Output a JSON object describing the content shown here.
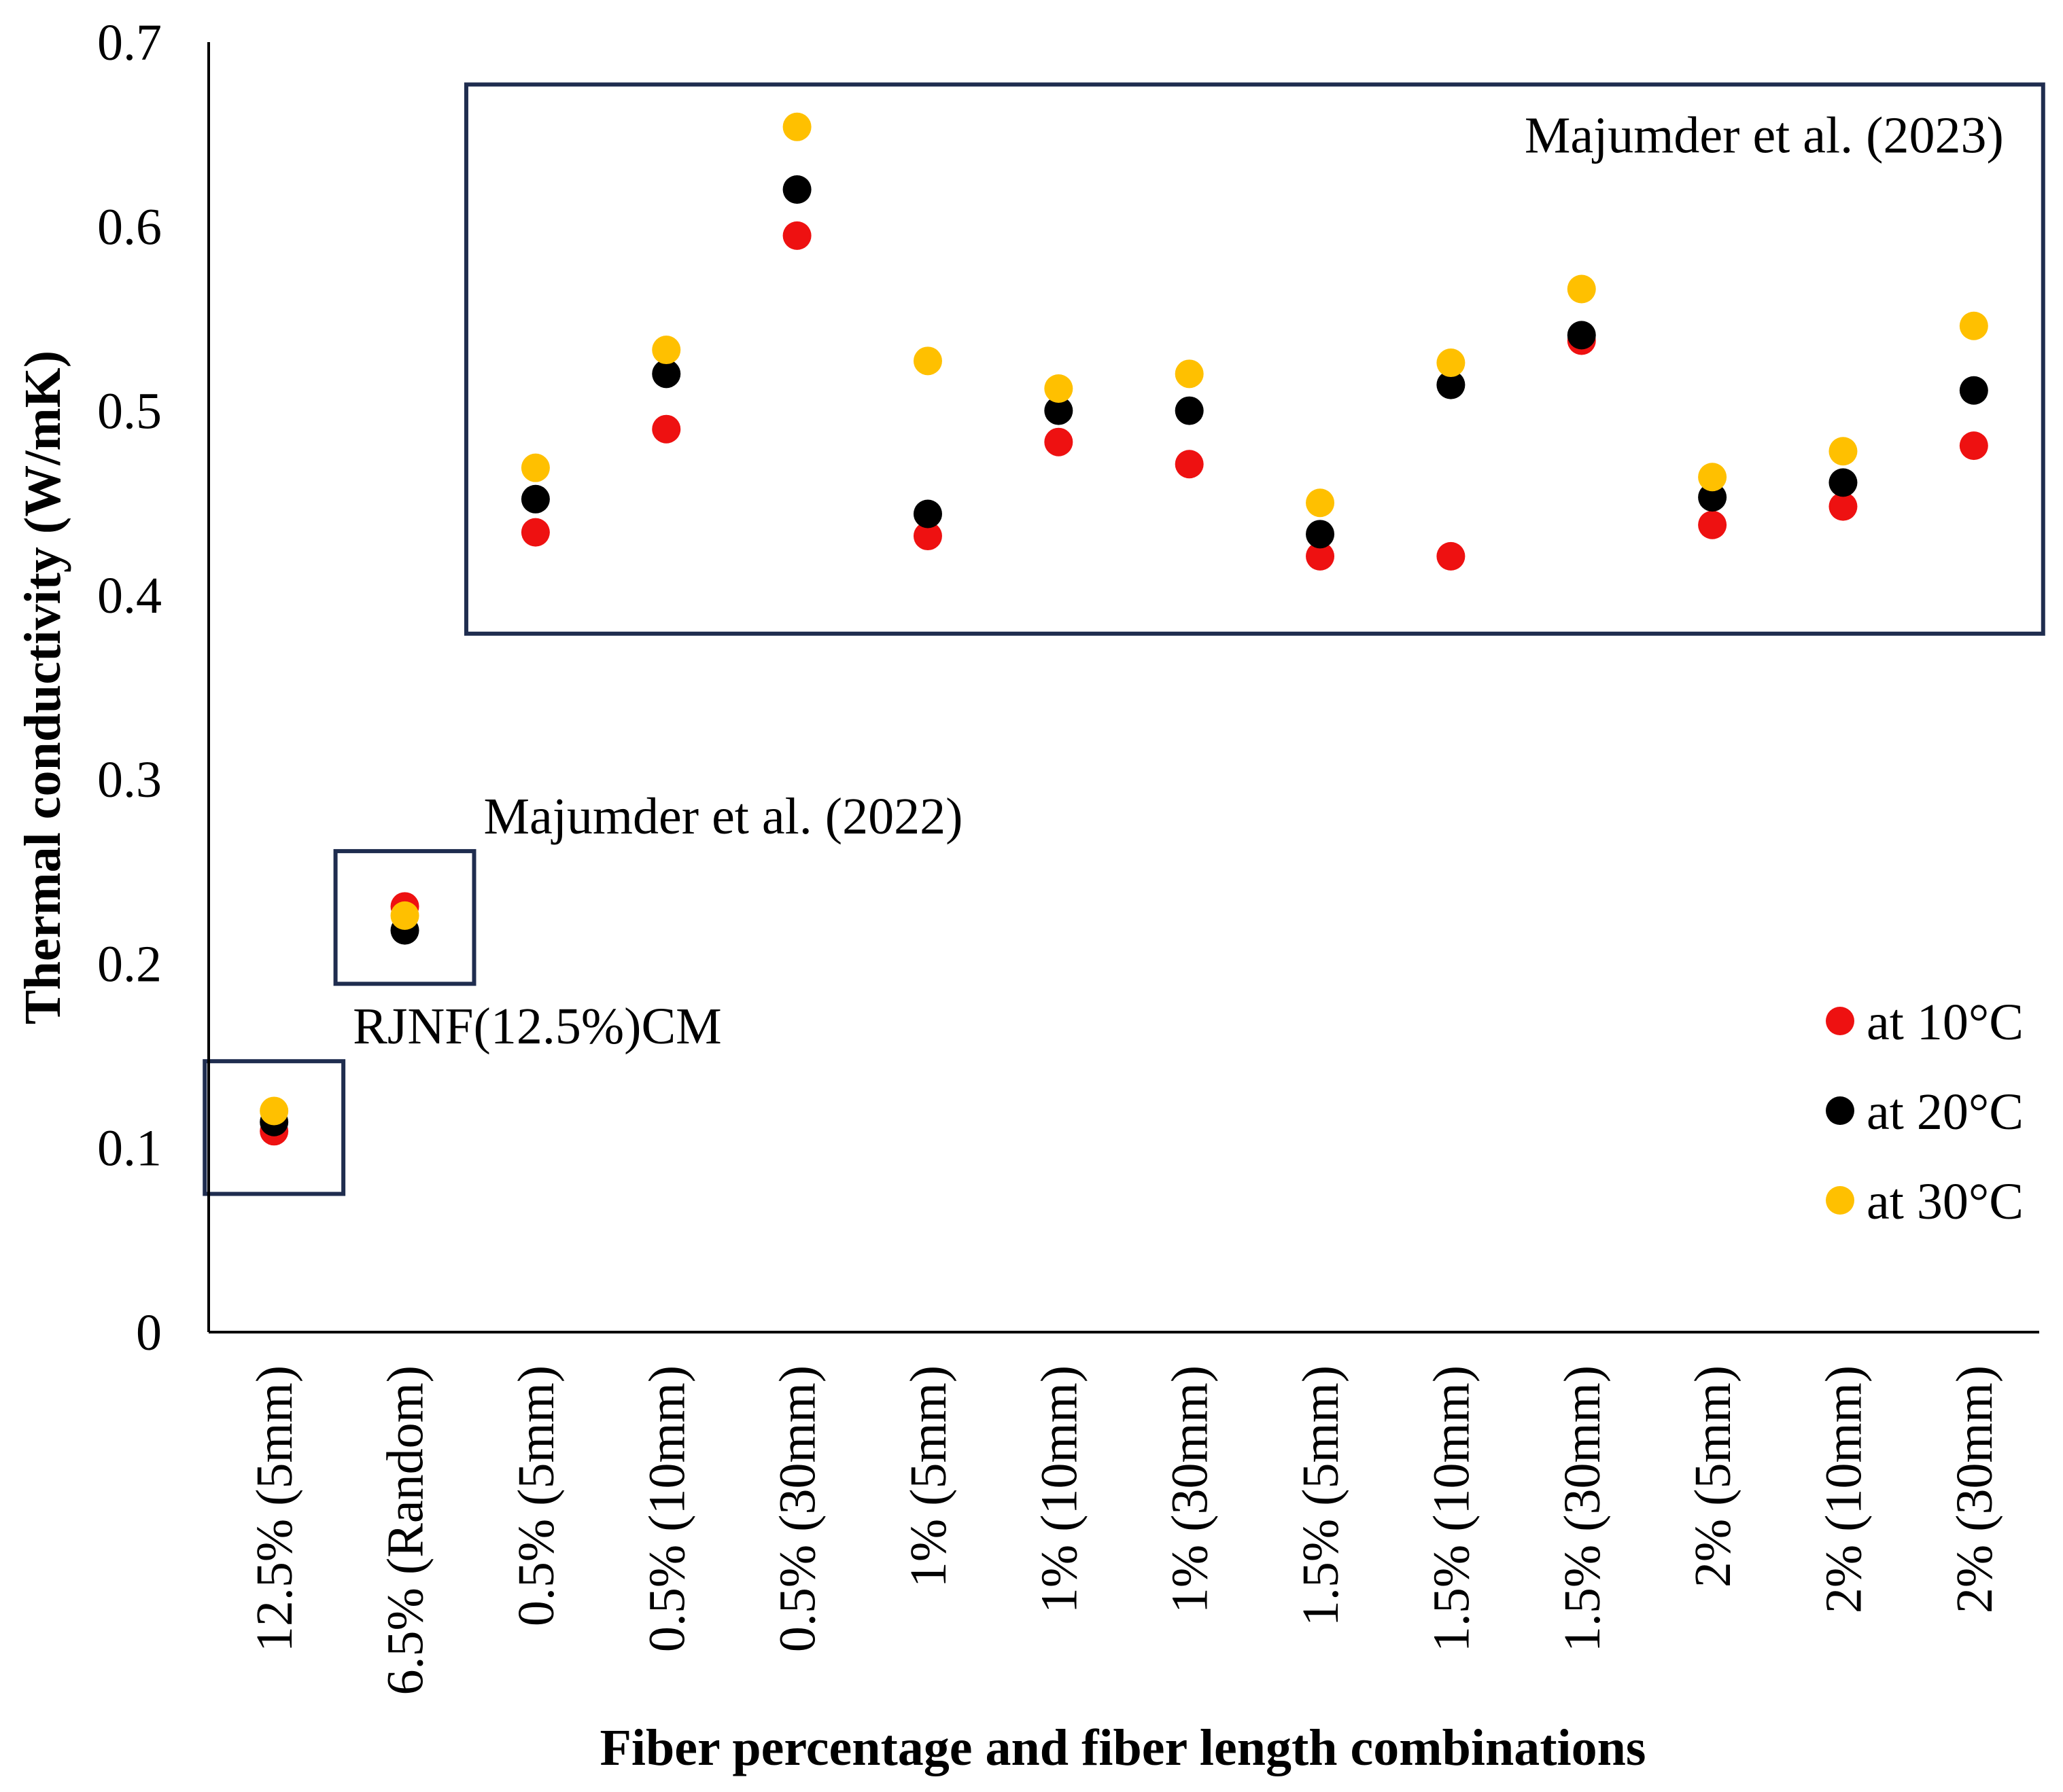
{
  "chart_data": {
    "type": "scatter",
    "title": "",
    "xlabel": "Fiber percentage and fiber length combinations",
    "ylabel": "Thermal conductivity (W/mK)",
    "ylim": [
      0,
      0.7
    ],
    "yticks": [
      "0",
      "0.1",
      "0.2",
      "0.3",
      "0.4",
      "0.5",
      "0.6",
      "0.7"
    ],
    "ytick_values": [
      0,
      0.1,
      0.2,
      0.3,
      0.4,
      0.5,
      0.6,
      0.7
    ],
    "grid": false,
    "legend_position": "right",
    "categories": [
      "12.5% (5mm)",
      "6.5% (Random)",
      "0.5% (5mm)",
      "0.5% (10mm)",
      "0.5% (30mm)",
      "1% (5mm)",
      "1% (10mm)",
      "1% (30mm)",
      "1.5% (5mm)",
      "1.5% (10mm)",
      "1.5% (30mm)",
      "2% (5mm)",
      "2% (10mm)",
      "2% (30mm)"
    ],
    "series": [
      {
        "name": "at 10°C",
        "color": "#ee1111",
        "values": [
          0.109,
          0.231,
          0.434,
          0.49,
          0.595,
          0.432,
          0.483,
          0.471,
          0.421,
          0.421,
          0.538,
          0.438,
          0.448,
          0.481
        ]
      },
      {
        "name": "at 20°C",
        "color": "#000000",
        "values": [
          0.114,
          0.218,
          0.452,
          0.52,
          0.62,
          0.444,
          0.5,
          0.5,
          0.433,
          0.514,
          0.541,
          0.453,
          0.461,
          0.511
        ]
      },
      {
        "name": "at 30°C",
        "color": "#ffc000",
        "values": [
          0.12,
          0.226,
          0.469,
          0.533,
          0.654,
          0.527,
          0.512,
          0.52,
          0.45,
          0.526,
          0.566,
          0.464,
          0.478,
          0.546
        ]
      }
    ],
    "annotations": [
      {
        "text": "RJNF(12.5%)CM",
        "box_categories": [
          0,
          0
        ],
        "box_range": [
          0.075,
          0.147
        ]
      },
      {
        "text": "Majumder et al. (2022)",
        "box_categories": [
          1,
          1
        ],
        "box_range": [
          0.189,
          0.261
        ]
      },
      {
        "text": "Majumder et al. (2023)",
        "box_categories": [
          2,
          13
        ],
        "box_range": [
          0.379,
          0.677
        ]
      }
    ],
    "frame_color": "#1f2d4f"
  }
}
